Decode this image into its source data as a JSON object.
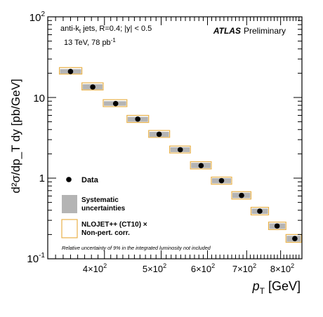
{
  "chart_data": {
    "type": "scatter",
    "x_scale": "log",
    "y_scale": "log",
    "xlim": [
      320,
      870
    ],
    "ylim": [
      0.1,
      100
    ],
    "xlabel_main": "p",
    "xlabel_sub": "T",
    "xlabel_unit": "[GeV]",
    "ylabel": "d²σ/dp_T dy [pb/GeV]",
    "x_ticks": [
      {
        "value": 400,
        "label_base": "4×10",
        "label_exp": "2"
      },
      {
        "value": 500,
        "label_base": "5×10",
        "label_exp": "2"
      },
      {
        "value": 600,
        "label_base": "6×10",
        "label_exp": "2"
      },
      {
        "value": 700,
        "label_base": "7×10",
        "label_exp": "2"
      },
      {
        "value": 800,
        "label_base": "8×10",
        "label_exp": "2"
      }
    ],
    "y_ticks": [
      {
        "value": 0.1,
        "label_base": "10",
        "label_exp": "-1"
      },
      {
        "value": 1,
        "label_base": "1",
        "label_exp": ""
      },
      {
        "value": 10,
        "label_base": "10",
        "label_exp": ""
      },
      {
        "value": 100,
        "label_base": "10",
        "label_exp": "2"
      }
    ],
    "series": [
      {
        "name": "Data",
        "marker": "circle",
        "color": "#000000",
        "points": [
          {
            "x": 350,
            "y": 21.0
          },
          {
            "x": 382,
            "y": 13.5
          },
          {
            "x": 418,
            "y": 8.4
          },
          {
            "x": 456,
            "y": 5.4
          },
          {
            "x": 496,
            "y": 3.5
          },
          {
            "x": 539,
            "y": 2.25
          },
          {
            "x": 585,
            "y": 1.43
          },
          {
            "x": 634,
            "y": 0.93
          },
          {
            "x": 686,
            "y": 0.61
          },
          {
            "x": 737,
            "y": 0.39
          },
          {
            "x": 789,
            "y": 0.255
          },
          {
            "x": 846,
            "y": 0.178
          }
        ]
      },
      {
        "name": "Systematic uncertainties",
        "type": "band",
        "color": "#b4b4b4",
        "bins": [
          {
            "x_low": 335,
            "x_high": 366,
            "y_low": 19.8,
            "y_high": 22.5
          },
          {
            "x_low": 366,
            "x_high": 398,
            "y_low": 12.6,
            "y_high": 14.6
          },
          {
            "x_low": 398,
            "x_high": 437,
            "y_low": 7.9,
            "y_high": 9.0
          },
          {
            "x_low": 437,
            "x_high": 476,
            "y_low": 5.0,
            "y_high": 5.75
          },
          {
            "x_low": 476,
            "x_high": 517,
            "y_low": 3.25,
            "y_high": 3.75
          },
          {
            "x_low": 517,
            "x_high": 561,
            "y_low": 2.1,
            "y_high": 2.42
          },
          {
            "x_low": 561,
            "x_high": 609,
            "y_low": 1.33,
            "y_high": 1.55
          },
          {
            "x_low": 609,
            "x_high": 660,
            "y_low": 0.86,
            "y_high": 1.0
          },
          {
            "x_low": 660,
            "x_high": 712,
            "y_low": 0.565,
            "y_high": 0.66
          },
          {
            "x_low": 712,
            "x_high": 763,
            "y_low": 0.36,
            "y_high": 0.42
          },
          {
            "x_low": 763,
            "x_high": 817,
            "y_low": 0.235,
            "y_high": 0.275
          },
          {
            "x_low": 817,
            "x_high": 868,
            "y_low": 0.163,
            "y_high": 0.193
          }
        ]
      },
      {
        "name": "NLOJET++ (CT10) × Non-pert. corr.",
        "type": "band",
        "color": "#e8b14a",
        "bins": [
          {
            "x_low": 335,
            "x_high": 366,
            "y_low": 19.5,
            "y_high": 23.5
          },
          {
            "x_low": 366,
            "x_high": 398,
            "y_low": 12.4,
            "y_high": 15.2
          },
          {
            "x_low": 398,
            "x_high": 437,
            "y_low": 7.7,
            "y_high": 9.4
          },
          {
            "x_low": 437,
            "x_high": 476,
            "y_low": 4.9,
            "y_high": 6.0
          },
          {
            "x_low": 476,
            "x_high": 517,
            "y_low": 3.2,
            "y_high": 3.9
          },
          {
            "x_low": 517,
            "x_high": 561,
            "y_low": 2.05,
            "y_high": 2.5
          },
          {
            "x_low": 561,
            "x_high": 609,
            "y_low": 1.3,
            "y_high": 1.6
          },
          {
            "x_low": 609,
            "x_high": 660,
            "y_low": 0.84,
            "y_high": 1.03
          },
          {
            "x_low": 660,
            "x_high": 712,
            "y_low": 0.55,
            "y_high": 0.68
          },
          {
            "x_low": 712,
            "x_high": 763,
            "y_low": 0.35,
            "y_high": 0.435
          },
          {
            "x_low": 763,
            "x_high": 817,
            "y_low": 0.23,
            "y_high": 0.285
          },
          {
            "x_low": 817,
            "x_high": 868,
            "y_low": 0.16,
            "y_high": 0.2
          }
        ]
      }
    ],
    "annotations": {
      "selection_prefix": "anti-k",
      "selection_sub": "t",
      "selection_rest": " jets,  R=0.4; |y| < 0.5",
      "lumi_base": "13 TeV, 78 pb",
      "lumi_exp": "-1",
      "atlas": "ATLAS",
      "preliminary": "Preliminary",
      "footnote": "Relative uncertainty of 9% in the integrated luminosity not included"
    },
    "legend": {
      "placement": "bottom-left",
      "data_label": "Data",
      "syst_label_1": "Systematic",
      "syst_label_2": "uncertainties",
      "theory_label_1": "NLOJET++ (CT10) ×",
      "theory_label_2": "Non-pert. corr."
    },
    "grid": false
  }
}
